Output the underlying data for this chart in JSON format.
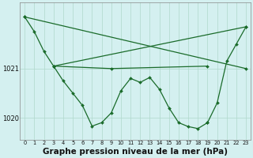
{
  "background_color": "#d4f0f0",
  "grid_color": "#b0d8cc",
  "line_color": "#1a6b2a",
  "marker_color": "#1a6b2a",
  "title": "Graphe pression niveau de la mer (hPa)",
  "title_fontsize": 7.5,
  "hours": [
    0,
    1,
    2,
    3,
    4,
    5,
    6,
    7,
    8,
    9,
    10,
    11,
    12,
    13,
    14,
    15,
    16,
    17,
    18,
    19,
    20,
    21,
    22,
    23
  ],
  "ylim": [
    1019.55,
    1022.35
  ],
  "yticks": [
    1020,
    1021
  ],
  "xlim": [
    -0.5,
    23.5
  ],
  "line1_x": [
    0,
    1,
    2,
    3,
    4,
    5,
    6,
    7,
    8,
    9,
    10,
    11,
    12,
    13,
    14,
    15,
    16,
    17,
    18,
    19
  ],
  "line1_y": [
    1022.05,
    1021.75,
    1021.35,
    1021.05,
    1020.75,
    1020.5,
    1020.25,
    1019.83,
    1019.9,
    1020.1,
    1020.55,
    1020.8,
    1020.72,
    1020.82,
    1020.58,
    1020.2,
    1019.9,
    1019.82,
    1019.78,
    1019.9
  ],
  "line2_x": [
    0,
    23
  ],
  "line2_y": [
    1022.05,
    1021.0
  ],
  "line3_x": [
    3,
    23
  ],
  "line3_y": [
    1021.05,
    1021.85
  ],
  "line4_x": [
    3,
    9,
    19
  ],
  "line4_y": [
    1021.05,
    1021.0,
    1021.05
  ],
  "line5_x": [
    19,
    20,
    21,
    22,
    23
  ],
  "line5_y": [
    1019.9,
    1020.3,
    1021.15,
    1021.5,
    1021.85
  ]
}
